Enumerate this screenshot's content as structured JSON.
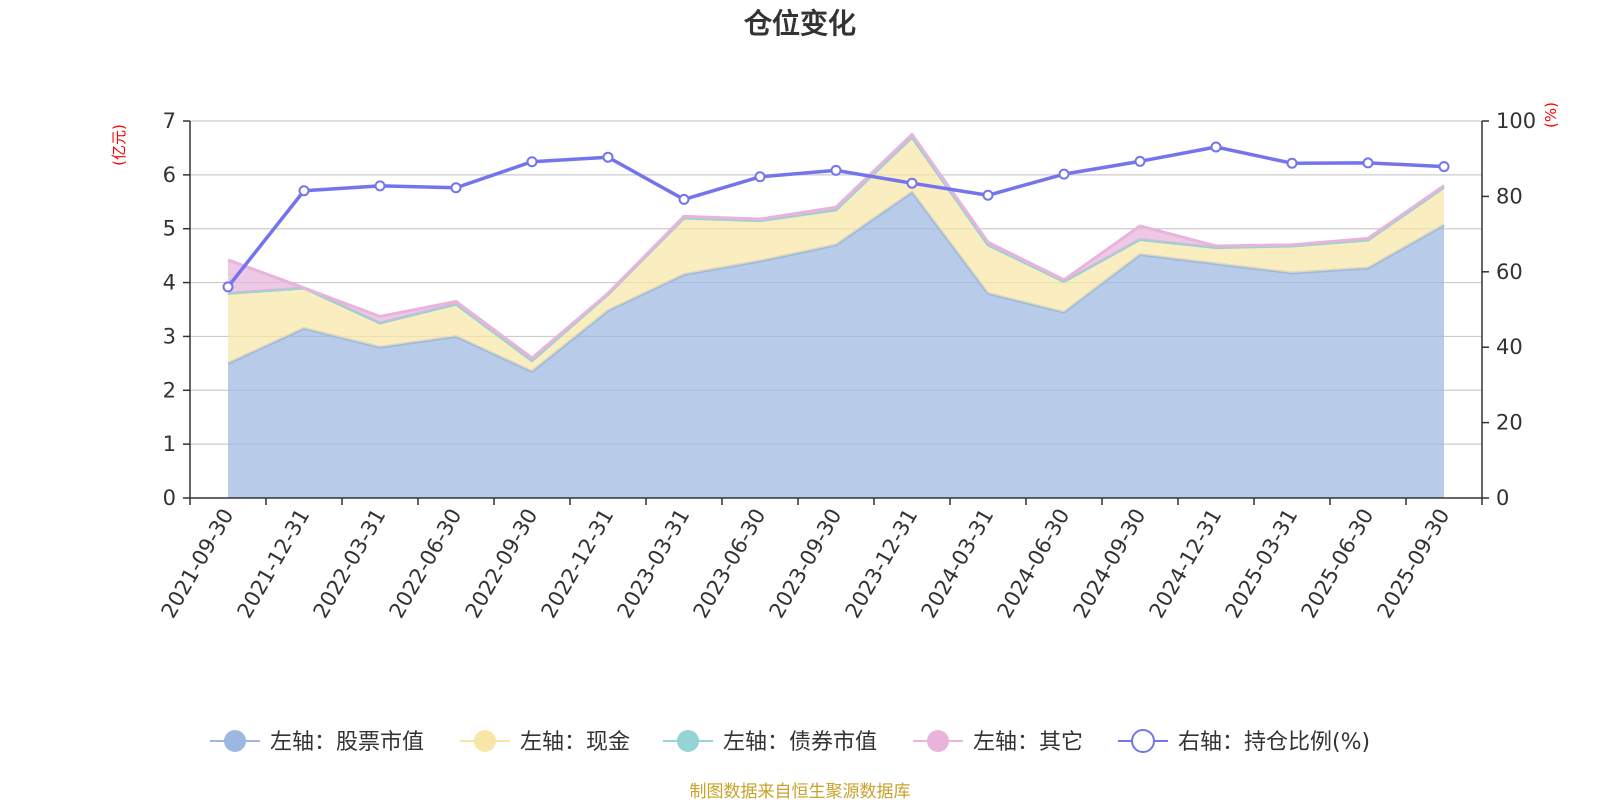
{
  "title": "仓位变化",
  "source_note": "制图数据来自恒生聚源数据库",
  "left_unit": "(亿元)",
  "right_unit": "(%)",
  "colors": {
    "stock": "#9db8e0",
    "cash": "#f8e6a6",
    "bond": "#95d3d4",
    "other": "#e8b4dc",
    "ratio": "#7474ee",
    "axis": "#333333",
    "grid": "#cccccc"
  },
  "chart_data": {
    "type": "area",
    "title": "仓位变化",
    "categories": [
      "2021-09-30",
      "2021-12-31",
      "2022-03-31",
      "2022-06-30",
      "2022-09-30",
      "2022-12-31",
      "2023-03-31",
      "2023-06-30",
      "2023-09-30",
      "2023-12-31",
      "2024-03-31",
      "2024-06-30",
      "2024-09-30",
      "2024-12-31",
      "2025-03-31",
      "2025-06-30",
      "2025-09-30"
    ],
    "x_tick_labels": [
      "2021-09-30",
      "2021-12-31",
      "2022-03-31",
      "2022-06-30",
      "2022-09-30",
      "2022-12-31",
      "2023-03-31",
      "2023-06-30",
      "2023-09-30",
      "2023-12-31",
      "2024-03-31",
      "2024-06-30",
      "2024-09-30",
      "2024-12-31",
      "2025-03-31",
      "2025-06-30",
      "2025-09-30"
    ],
    "left_axis": {
      "label": "(亿元)",
      "ylim": [
        0,
        7
      ],
      "ticks": [
        "0",
        "1",
        "2",
        "3",
        "4",
        "5",
        "6",
        "7"
      ]
    },
    "right_axis": {
      "label": "(%)",
      "ylim": [
        0,
        100
      ],
      "ticks": [
        "0",
        "20",
        "40",
        "60",
        "80",
        "100"
      ]
    },
    "grid": true,
    "legend_position": "bottom",
    "series": [
      {
        "key": "stock",
        "name": "左轴：股票市值",
        "axis": "left",
        "kind": "area-stacked",
        "values": [
          2.5,
          3.15,
          2.8,
          3.0,
          2.35,
          3.48,
          4.15,
          4.4,
          4.7,
          5.68,
          3.8,
          3.45,
          4.52,
          4.35,
          4.18,
          4.27,
          5.07
        ]
      },
      {
        "key": "cash",
        "name": "左轴：现金",
        "axis": "left",
        "kind": "area-stacked",
        "values": [
          1.3,
          0.75,
          0.45,
          0.6,
          0.2,
          0.3,
          1.05,
          0.75,
          0.65,
          1.02,
          0.9,
          0.57,
          0.28,
          0.3,
          0.5,
          0.52,
          0.7
        ]
      },
      {
        "key": "bond",
        "name": "左轴：债券市值",
        "axis": "left",
        "kind": "area-stacked",
        "values": [
          0,
          0,
          0,
          0,
          0,
          0,
          0,
          0,
          0,
          0,
          0,
          0,
          0,
          0,
          0,
          0,
          0
        ]
      },
      {
        "key": "other",
        "name": "左轴：其它",
        "axis": "left",
        "kind": "area-stacked",
        "values": [
          0.62,
          0.0,
          0.12,
          0.05,
          0.05,
          0.02,
          0.03,
          0.03,
          0.05,
          0.05,
          0.05,
          0.03,
          0.25,
          0.03,
          0.02,
          0.03,
          0.03
        ]
      },
      {
        "key": "ratio",
        "name": "右轴：持仓比例(%)",
        "axis": "right",
        "kind": "line",
        "values": [
          56,
          81.5,
          82.8,
          82.3,
          89.2,
          90.4,
          79.2,
          85.2,
          86.9,
          83.5,
          80.3,
          85.9,
          89.3,
          93.1,
          88.8,
          88.9,
          87.9
        ]
      }
    ]
  }
}
